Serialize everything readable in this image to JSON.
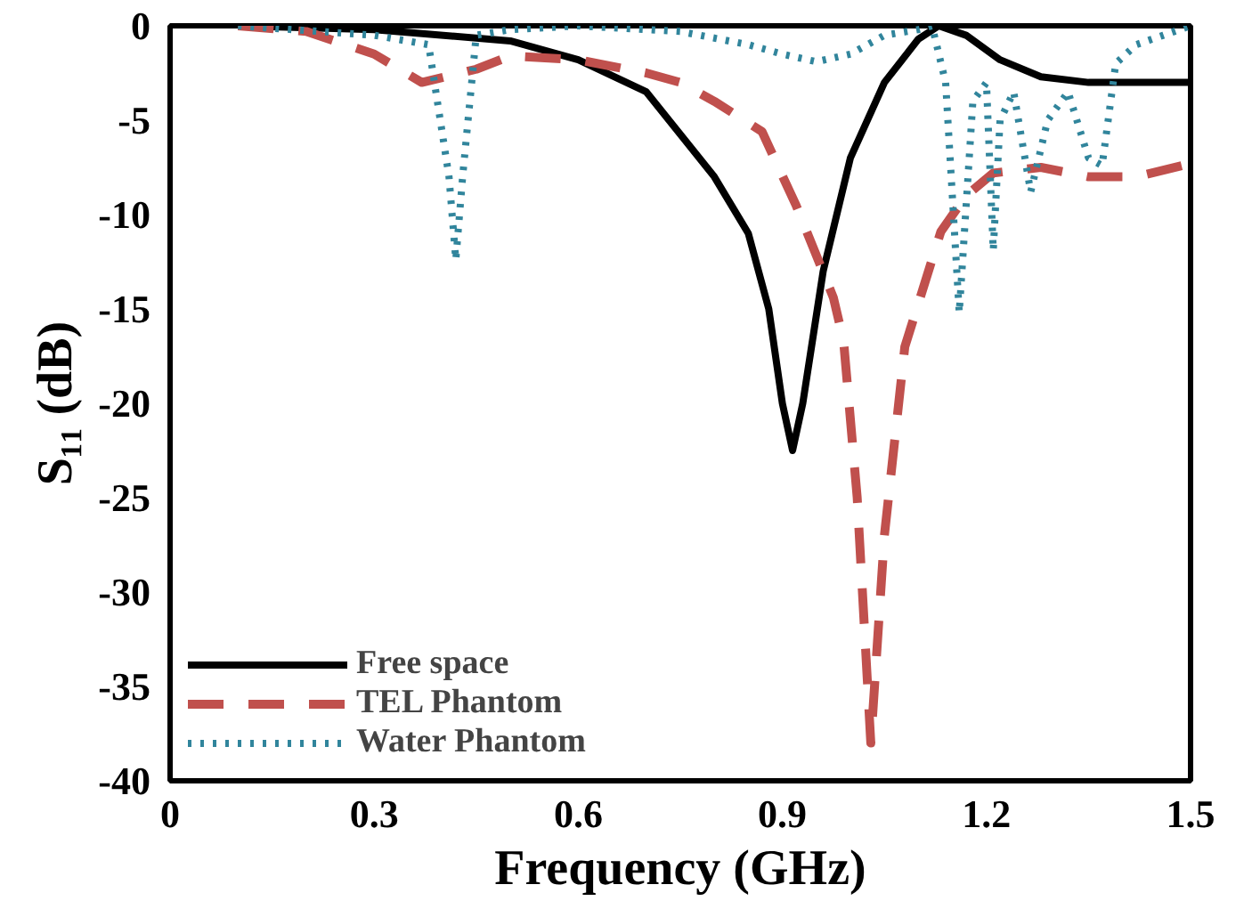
{
  "chart_data": {
    "type": "line",
    "xlabel": "Frequency (GHz)",
    "ylabel": "S₁₁ (dB)",
    "xlim": [
      0,
      1.5
    ],
    "ylim": [
      -40,
      0
    ],
    "xticks": [
      0,
      0.3,
      0.6,
      0.9,
      1.2,
      1.5
    ],
    "yticks": [
      0,
      -5,
      -10,
      -15,
      -20,
      -25,
      -30,
      -35,
      -40
    ],
    "grid": false,
    "legend": "bottom left",
    "series": [
      {
        "name": "Free space",
        "color": "#000000",
        "line_style": "solid",
        "x": [
          0.1,
          0.3,
          0.5,
          0.6,
          0.7,
          0.8,
          0.85,
          0.88,
          0.9,
          0.915,
          0.93,
          0.96,
          1.0,
          1.05,
          1.1,
          1.13,
          1.17,
          1.22,
          1.28,
          1.35,
          1.5
        ],
        "values": [
          0,
          -0.2,
          -0.8,
          -1.8,
          -3.5,
          -8,
          -11,
          -15,
          -20,
          -22.5,
          -20,
          -13,
          -7,
          -3,
          -0.7,
          0,
          -0.5,
          -1.8,
          -2.7,
          -3,
          -3
        ]
      },
      {
        "name": "TEL Phantom",
        "color": "#c0504d",
        "line_style": "dashed",
        "x": [
          0.1,
          0.2,
          0.3,
          0.37,
          0.45,
          0.5,
          0.6,
          0.7,
          0.75,
          0.8,
          0.87,
          0.92,
          0.975,
          0.99,
          1.01,
          1.03,
          1.05,
          1.08,
          1.133,
          1.17,
          1.21,
          1.28,
          1.35,
          1.42,
          1.5
        ],
        "values": [
          0,
          -0.3,
          -1.5,
          -3,
          -2.3,
          -1.6,
          -1.8,
          -2.5,
          -3,
          -4,
          -5.6,
          -9.5,
          -14.4,
          -16.7,
          -25,
          -38,
          -27,
          -17,
          -10.9,
          -9,
          -7.8,
          -7.5,
          -8,
          -8,
          -7.3
        ]
      },
      {
        "name": "Water Phantom",
        "color": "#31859c",
        "line_style": "dotted",
        "x": [
          0.1,
          0.3,
          0.38,
          0.41,
          0.42,
          0.43,
          0.45,
          0.5,
          0.6,
          0.75,
          0.85,
          0.9,
          0.95,
          1.0,
          1.05,
          1.1,
          1.12,
          1.14,
          1.16,
          1.18,
          1.2,
          1.21,
          1.22,
          1.24,
          1.265,
          1.29,
          1.32,
          1.35,
          1.37,
          1.39,
          1.42,
          1.46,
          1.5
        ],
        "values": [
          0,
          -0.5,
          -1,
          -8,
          -12.4,
          -8,
          -0.5,
          -0.2,
          0,
          -0.3,
          -1,
          -1.5,
          -1.9,
          -1.5,
          -0.5,
          -0.2,
          0,
          -3,
          -15.2,
          -4,
          -3,
          -11.9,
          -5,
          -3.5,
          -8.8,
          -5,
          -3.5,
          -7,
          -7.4,
          -2,
          -1,
          -0.5,
          0
        ]
      }
    ]
  }
}
